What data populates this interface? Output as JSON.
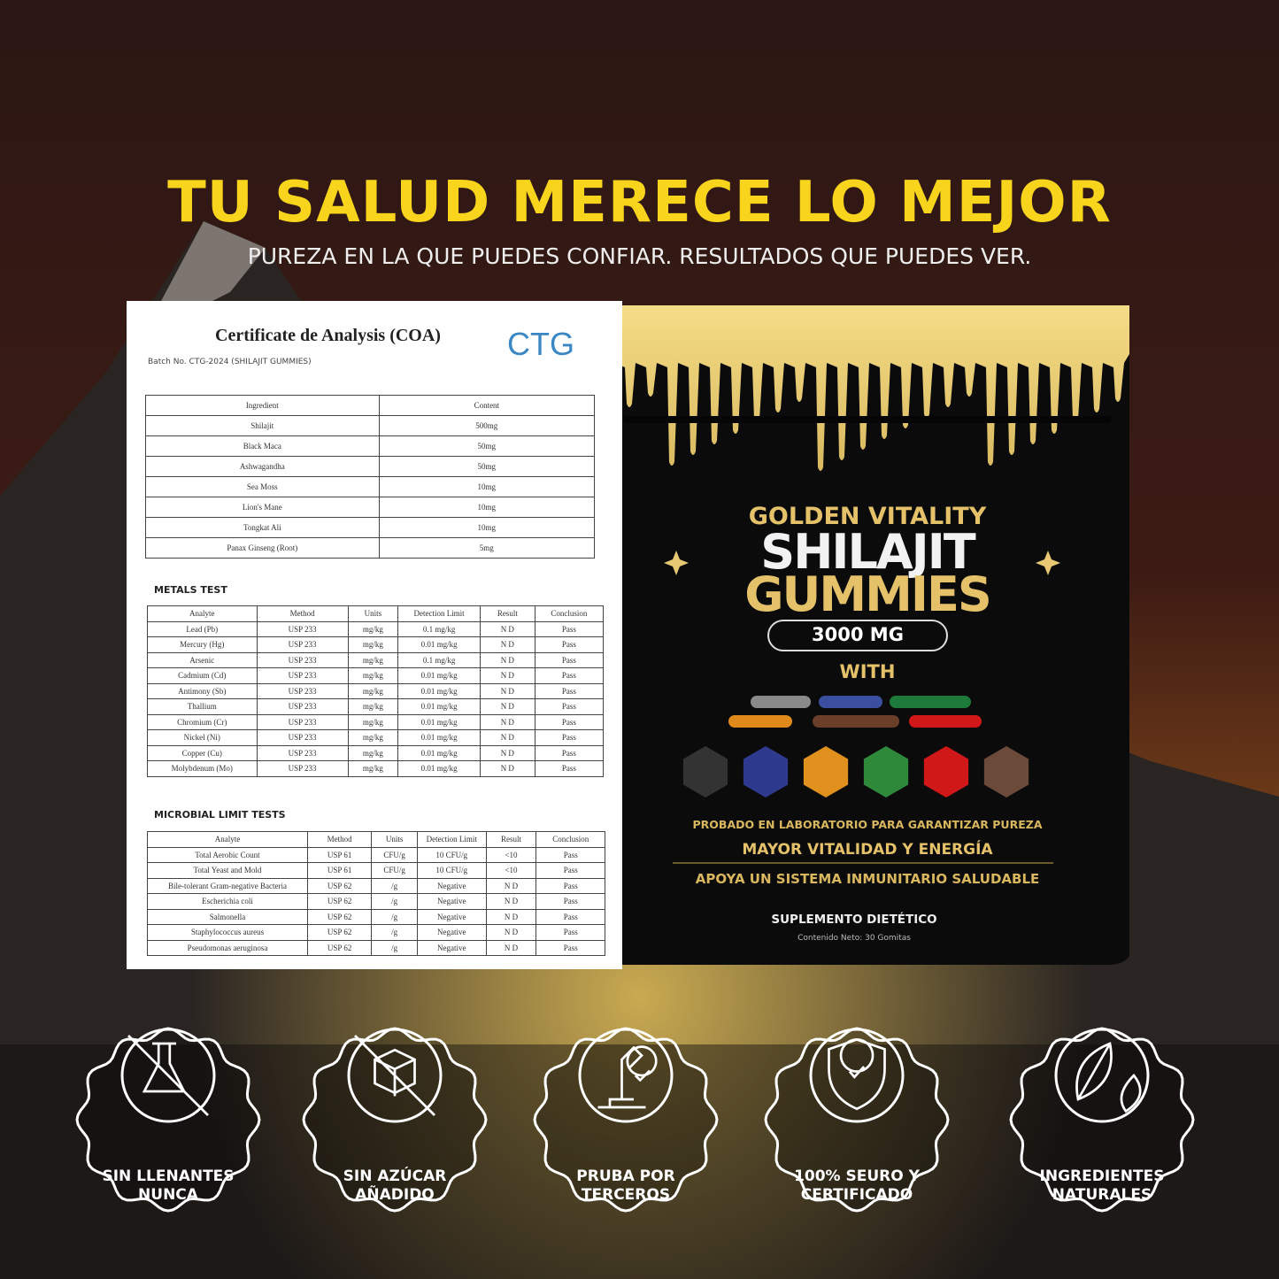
{
  "header": {
    "title": "TU SALUD MERECE LO MEJOR",
    "subtitle": "PUREZA EN LA QUE PUEDES CONFIAR. RESULTADOS QUE PUEDES VER."
  },
  "certificate": {
    "title": "Certificate de Analysis (COA)",
    "logo": "CTG",
    "batch": "Batch No. CTG-2024 (SHILAJIT GUMMIES)",
    "ingredients": {
      "header": [
        "Ingredient",
        "Content"
      ],
      "rows": [
        [
          "Shilajit",
          "500mg"
        ],
        [
          "Black Maca",
          "50mg"
        ],
        [
          "Ashwagandha",
          "50mg"
        ],
        [
          "Sea Moss",
          "10mg"
        ],
        [
          "Lion's Mane",
          "10mg"
        ],
        [
          "Tongkat Ali",
          "10mg"
        ],
        [
          "Panax Ginseng (Root)",
          "5mg"
        ]
      ]
    },
    "metals": {
      "title": "METALS TEST",
      "header": [
        "Analyte",
        "Method",
        "Units",
        "Detection Limit",
        "Result",
        "Conclusion"
      ],
      "rows": [
        [
          "Lead (Pb)",
          "USP 233",
          "mg/kg",
          "0.1 mg/kg",
          "N D",
          "Pass"
        ],
        [
          "Mercury (Hg)",
          "USP 233",
          "mg/kg",
          "0.01 mg/kg",
          "N D",
          "Pass"
        ],
        [
          "Arsenic",
          "USP 233",
          "mg/kg",
          "0.1 mg/kg",
          "N D",
          "Pass"
        ],
        [
          "Cadmium (Cd)",
          "USP 233",
          "mg/kg",
          "0.01 mg/kg",
          "N D",
          "Pass"
        ],
        [
          "Antimony (Sb)",
          "USP 233",
          "mg/kg",
          "0.01 mg/kg",
          "N D",
          "Pass"
        ],
        [
          "Thallium",
          "USP 233",
          "mg/kg",
          "0.01 mg/kg",
          "N D",
          "Pass"
        ],
        [
          "Chromium (Cr)",
          "USP 233",
          "mg/kg",
          "0.01 mg/kg",
          "N D",
          "Pass"
        ],
        [
          "Nickel (Ni)",
          "USP 233",
          "mg/kg",
          "0.01 mg/kg",
          "N D",
          "Pass"
        ],
        [
          "Copper (Cu)",
          "USP 233",
          "mg/kg",
          "0.01 mg/kg",
          "N D",
          "Pass"
        ],
        [
          "Molybdenum (Mo)",
          "USP 233",
          "mg/kg",
          "0.01 mg/kg",
          "N D",
          "Pass"
        ]
      ]
    },
    "microbial": {
      "title": "MICROBIAL LIMIT TESTS",
      "header": [
        "Analyte",
        "Method",
        "Units",
        "Detection Limit",
        "Result",
        "Conclusion"
      ],
      "rows": [
        [
          "Total Aerobic Count",
          "USP 61",
          "CFU/g",
          "10 CFU/g",
          "<10",
          "Pass"
        ],
        [
          "Total Yeast and Mold",
          "USP 61",
          "CFU/g",
          "10 CFU/g",
          "<10",
          "Pass"
        ],
        [
          "Bile-tolerant Gram-negative Bacteria",
          "USP 62",
          "/g",
          "Negative",
          "N D",
          "Pass"
        ],
        [
          "Escherichia coli",
          "USP 62",
          "/g",
          "Negative",
          "N D",
          "Pass"
        ],
        [
          "Salmonella",
          "USP 62",
          "/g",
          "Negative",
          "N D",
          "Pass"
        ],
        [
          "Staphylococcus aureus",
          "USP 62",
          "/g",
          "Negative",
          "N D",
          "Pass"
        ],
        [
          "Pseudomonas aeruginosa",
          "USP 62",
          "/g",
          "Negative",
          "N D",
          "Pass"
        ]
      ]
    }
  },
  "product": {
    "brand": "GOLDEN VITALITY",
    "name1": "SHILAJIT",
    "name2": "GUMMIES",
    "dose": "3000 MG",
    "with": "WITH",
    "claims": [
      "PROBADO EN LABORATORIO PARA GARANTIZAR PUREZA",
      "MAYOR VITALIDAD Y ENERGÍA",
      "APOYA UN SISTEMA INMUNITARIO SALUDABLE"
    ],
    "type": "SUPLEMENTO DIETÉTICO",
    "net": "Contenido Neto: 30 Gomitas"
  },
  "badges": [
    {
      "lines": [
        "SIN LLENANTES",
        "NUNCA"
      ]
    },
    {
      "lines": [
        "SIN AZÚCAR",
        "AÑADIDO"
      ]
    },
    {
      "lines": [
        "PRUBA POR",
        "TERCEROS"
      ]
    },
    {
      "lines": [
        "100% SEURO Y",
        "CERTIFICADO"
      ]
    },
    {
      "lines": [
        "INGREDIENTES",
        "NATURALES"
      ]
    }
  ]
}
